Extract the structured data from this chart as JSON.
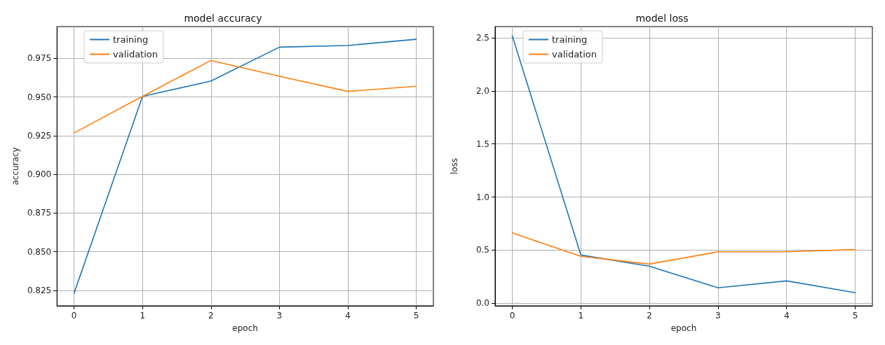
{
  "chart_data": [
    {
      "type": "line",
      "title": "model accuracy",
      "xlabel": "epoch",
      "ylabel": "accuracy",
      "x": [
        0,
        1,
        2,
        3,
        4,
        5
      ],
      "series": [
        {
          "name": "training",
          "color": "#1f77b4",
          "values": [
            0.8232,
            0.9504,
            0.9603,
            0.9822,
            0.9833,
            0.9873
          ]
        },
        {
          "name": "validation",
          "color": "#ff7f0e",
          "values": [
            0.9268,
            0.9504,
            0.9736,
            0.9634,
            0.9536,
            0.9569
          ]
        }
      ],
      "xlim": [
        -0.25,
        5.25
      ],
      "xticks": [
        0,
        1,
        2,
        3,
        4,
        5
      ],
      "ylim": [
        0.815,
        0.9955
      ],
      "yticks": [
        0.825,
        {
          "value": 0.85,
          "label": "0.850"
        },
        0.875,
        {
          "value": 0.9,
          "label": "0.900"
        },
        0.925,
        {
          "value": 0.95,
          "label": "0.950"
        },
        0.975
      ],
      "grid": true,
      "legend": "top left",
      "marker": "none",
      "line_style": "solid"
    },
    {
      "type": "line",
      "title": "model loss",
      "xlabel": "epoch",
      "ylabel": "loss",
      "x": [
        0,
        1,
        2,
        3,
        4,
        5
      ],
      "series": [
        {
          "name": "training",
          "color": "#1f77b4",
          "values": [
            2.52,
            0.454,
            0.347,
            0.145,
            0.21,
            0.099
          ]
        },
        {
          "name": "validation",
          "color": "#ff7f0e",
          "values": [
            0.662,
            0.441,
            0.368,
            0.484,
            0.484,
            0.505
          ]
        }
      ],
      "xlim": [
        -0.25,
        5.25
      ],
      "xticks": [
        0,
        1,
        2,
        3,
        4,
        5
      ],
      "ylim": [
        -0.025,
        2.606
      ],
      "yticks": [
        {
          "value": 0,
          "label": "0.0"
        },
        0.5,
        {
          "value": 1,
          "label": "1.0"
        },
        1.5,
        {
          "value": 2,
          "label": "2.0"
        },
        2.5
      ],
      "grid": true,
      "legend": "top left",
      "marker": "none",
      "line_style": "solid"
    }
  ]
}
